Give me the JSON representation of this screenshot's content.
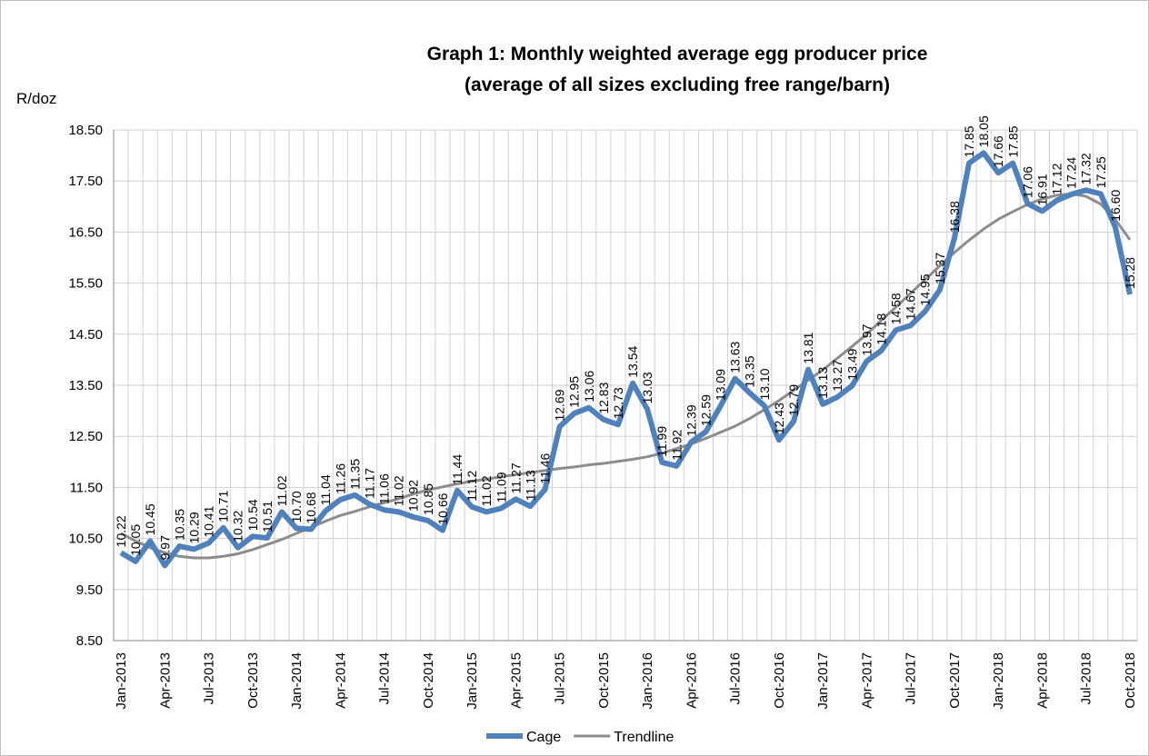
{
  "chart_data": {
    "type": "line",
    "title": "Graph 1: Monthly weighted average egg producer price",
    "subtitle": "(average of all sizes excluding free range/barn)",
    "y_label": "R/doz",
    "categories": [
      "Jan-2013",
      null,
      null,
      "Apr-2013",
      null,
      null,
      "Jul-2013",
      null,
      null,
      "Oct-2013",
      null,
      null,
      "Jan-2014",
      null,
      null,
      "Apr-2014",
      null,
      null,
      "Jul-2014",
      null,
      null,
      "Oct-2014",
      null,
      null,
      "Jan-2015",
      null,
      null,
      "Apr-2015",
      null,
      null,
      "Jul-2015",
      null,
      null,
      "Oct-2015",
      null,
      null,
      "Jan-2016",
      null,
      null,
      "Apr-2016",
      null,
      null,
      "Jul-2016",
      null,
      null,
      "Oct-2016",
      null,
      null,
      "Jan-2017",
      null,
      null,
      "Apr-2017",
      null,
      null,
      "Jul-2017",
      null,
      null,
      "Oct-2017",
      null,
      null,
      "Jan-2018",
      null,
      null,
      "Apr-2018",
      null,
      null,
      "Jul-2018",
      null,
      null,
      "Oct-2018"
    ],
    "series": [
      {
        "name": "Cage",
        "color": "#4f81bd",
        "values": [
          10.22,
          10.05,
          10.45,
          9.97,
          10.35,
          10.29,
          10.41,
          10.71,
          10.32,
          10.54,
          10.51,
          11.02,
          10.7,
          10.68,
          11.04,
          11.26,
          11.35,
          11.17,
          11.06,
          11.02,
          10.92,
          10.85,
          10.66,
          11.44,
          11.12,
          11.02,
          11.09,
          11.27,
          11.13,
          11.46,
          12.69,
          12.95,
          13.06,
          12.83,
          12.73,
          13.54,
          13.03,
          11.99,
          11.92,
          12.39,
          12.59,
          13.09,
          13.63,
          13.35,
          13.1,
          12.43,
          12.79,
          13.81,
          13.13,
          13.27,
          13.49,
          13.97,
          14.18,
          14.58,
          14.67,
          14.95,
          15.37,
          16.38,
          17.85,
          18.05,
          17.66,
          17.85,
          17.06,
          16.91,
          17.12,
          17.24,
          17.32,
          17.25,
          16.6,
          15.28
        ],
        "value_labels": [
          "10.22",
          "10.05",
          "10.45",
          "9.97",
          "10.35",
          "10.29",
          "10.41",
          "10.71",
          "10.32",
          "10.54",
          "10.51",
          "11.02",
          "10.70",
          "10.68",
          "11.04",
          "11.26",
          "11.35",
          "11.17",
          "11.06",
          "11.02",
          "10.92",
          "10.85",
          "10.66",
          "11.44",
          "11.12",
          "11.02",
          "11.09",
          "11.27",
          "11.13",
          "11.46",
          "12.69",
          "12.95",
          "13.06",
          "12.83",
          "12.73",
          "13.54",
          "13.03",
          "11.99",
          "11.92",
          "12.39",
          "12.59",
          "13.09",
          "13.63",
          "13.35",
          "13.10",
          "12.43",
          "12.79",
          "13.81",
          "13.13",
          "13.27",
          "13.49",
          "13.97",
          "14.18",
          "14.58",
          "14.67",
          "14.95",
          "15.37",
          "16.38",
          "17.85",
          "18.05",
          "17.66",
          "17.85",
          "17.06",
          "16.91",
          "17.12",
          "17.24",
          "17.32",
          "17.25",
          "16.60",
          "15.28"
        ]
      },
      {
        "name": "Trendline",
        "color": "#8c8c8c",
        "values": [
          10.6,
          10.45,
          10.32,
          10.22,
          10.15,
          10.12,
          10.12,
          10.15,
          10.2,
          10.28,
          10.38,
          10.48,
          10.6,
          10.72,
          10.84,
          10.95,
          11.03,
          11.12,
          11.2,
          11.28,
          11.37,
          11.45,
          11.51,
          11.57,
          11.62,
          11.66,
          11.71,
          11.75,
          11.79,
          11.83,
          11.87,
          11.9,
          11.94,
          11.97,
          12.01,
          12.05,
          12.1,
          12.17,
          12.26,
          12.35,
          12.46,
          12.58,
          12.7,
          12.85,
          13.02,
          13.2,
          13.4,
          13.6,
          13.8,
          14.03,
          14.26,
          14.5,
          14.77,
          15.03,
          15.3,
          15.57,
          15.84,
          16.1,
          16.34,
          16.56,
          16.75,
          16.9,
          17.04,
          17.15,
          17.22,
          17.25,
          17.2,
          17.05,
          16.75,
          16.35
        ]
      }
    ],
    "ylim": [
      8.5,
      18.5
    ],
    "yticks": [
      {
        "value": 8.5,
        "label": "8.50"
      },
      {
        "value": 9.5,
        "label": "9.50"
      },
      {
        "value": 10.5,
        "label": "10.50"
      },
      {
        "value": 11.5,
        "label": "11.50"
      },
      {
        "value": 12.5,
        "label": "12.50"
      },
      {
        "value": 13.5,
        "label": "13.50"
      },
      {
        "value": 14.5,
        "label": "14.50"
      },
      {
        "value": 15.5,
        "label": "15.50"
      },
      {
        "value": 16.5,
        "label": "16.50"
      },
      {
        "value": 17.5,
        "label": "17.50"
      },
      {
        "value": 18.5,
        "label": "18.50"
      }
    ],
    "grid": true,
    "legend": "bottom"
  }
}
